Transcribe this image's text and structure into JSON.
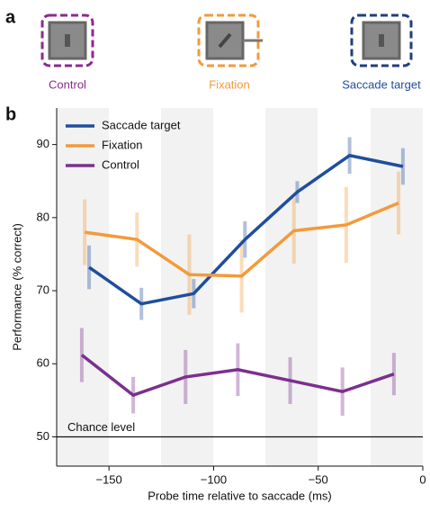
{
  "panel_a": {
    "label": "a",
    "conditions": [
      "Control",
      "Fixation",
      "Saccade target"
    ]
  },
  "chart_data": {
    "type": "line",
    "panel_label": "b",
    "x_label": "Probe time relative to saccade (ms)",
    "y_label": "Performance (% correct)",
    "xlim": [
      -175,
      0
    ],
    "ylim": [
      46,
      95
    ],
    "xticks": [
      {
        "value": -150,
        "label": "−150"
      },
      {
        "value": -100,
        "label": "−100"
      },
      {
        "value": -50,
        "label": "−50"
      },
      0
    ],
    "yticks": [
      50,
      60,
      70,
      80,
      90
    ],
    "legend": "upper left",
    "chance_level": {
      "label": "Chance level",
      "value": 50
    },
    "series": [
      {
        "name": "Saccade target",
        "color": "#1f4e9c",
        "x": [
          -159.5,
          -134.5,
          -109.5,
          -85,
          -60,
          -35,
          -9.5
        ],
        "values": [
          73.2,
          68.2,
          69.6,
          77,
          83.5,
          88.5,
          87
        ],
        "errors": [
          3,
          2.2,
          2,
          2.5,
          1.5,
          2.5,
          2.5
        ]
      },
      {
        "name": "Fixation",
        "color": "#f39a3a",
        "x": [
          -161.6,
          -136.6,
          -111.6,
          -86.6,
          -61.6,
          -36.6,
          -11.6
        ],
        "values": [
          78,
          77,
          72.2,
          72,
          78.2,
          79,
          82
        ],
        "errors": [
          4.5,
          3.7,
          5.5,
          5,
          4.5,
          5.2,
          4.3
        ]
      },
      {
        "name": "Control",
        "color": "#7b2f8f",
        "x": [
          -163,
          -138.4,
          -113.4,
          -88.4,
          -63.4,
          -38.4,
          -13.8
        ],
        "values": [
          61.2,
          55.7,
          58.2,
          59.2,
          57.7,
          56.2,
          58.6
        ],
        "errors": [
          3.7,
          2.5,
          3.7,
          3.6,
          3.2,
          3.3,
          2.9
        ]
      }
    ]
  }
}
